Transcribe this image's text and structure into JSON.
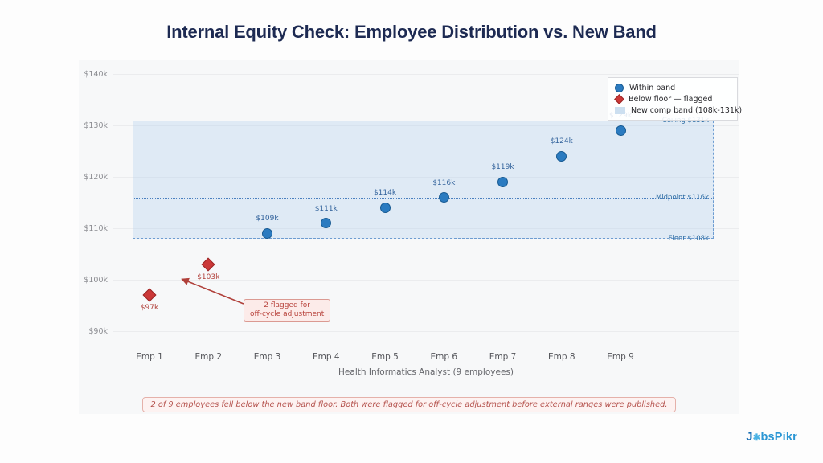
{
  "page": {
    "title": "Internal Equity Check: Employee Distribution vs. New Band",
    "logo": {
      "prefix": "J",
      "o_glyph": "✱",
      "suffix": "bsPikr"
    }
  },
  "legend": {
    "position": "upper right",
    "items": [
      {
        "label": "Within band",
        "swatch": "circle",
        "color": "#2b7bc0"
      },
      {
        "label": "Below floor — flagged",
        "swatch": "diamond",
        "color": "#cb3838"
      },
      {
        "label": "New comp band (108k-131k)",
        "swatch": "square",
        "color": "#ccdff0"
      }
    ]
  },
  "chart_data": {
    "type": "scatter",
    "title": "Internal Equity Check: Employee Distribution vs. New Band",
    "xlabel": "Health Informatics Analyst (9 employees)",
    "ylabel": "",
    "categories": [
      "Emp 1",
      "Emp 2",
      "Emp 3",
      "Emp 4",
      "Emp 5",
      "Emp 6",
      "Emp 7",
      "Emp 8",
      "Emp 9"
    ],
    "yticks": [
      {
        "value": 140,
        "label": "$140k"
      },
      {
        "value": 130,
        "label": "$130k"
      },
      {
        "value": 120,
        "label": "$120k"
      },
      {
        "value": 110,
        "label": "$110k"
      },
      {
        "value": 100,
        "label": "$100k"
      },
      {
        "value": 90,
        "label": "$90k"
      }
    ],
    "ylim_thousands": [
      86,
      143
    ],
    "grid": "horizontal",
    "series": [
      {
        "name": "Within band",
        "marker": "circle",
        "color": "#2b7bc0",
        "points": [
          {
            "x": "Emp 3",
            "y": 109,
            "label": "$109k"
          },
          {
            "x": "Emp 4",
            "y": 111,
            "label": "$111k"
          },
          {
            "x": "Emp 5",
            "y": 114,
            "label": "$114k"
          },
          {
            "x": "Emp 6",
            "y": 116,
            "label": "$116k"
          },
          {
            "x": "Emp 7",
            "y": 119,
            "label": "$119k"
          },
          {
            "x": "Emp 8",
            "y": 124,
            "label": "$124k"
          },
          {
            "x": "Emp 9",
            "y": 129,
            "label": "$129k"
          }
        ]
      },
      {
        "name": "Below floor — flagged",
        "marker": "diamond",
        "color": "#cb3838",
        "points": [
          {
            "x": "Emp 1",
            "y": 97,
            "label": "$97k"
          },
          {
            "x": "Emp 2",
            "y": 103,
            "label": "$103k"
          }
        ]
      }
    ],
    "band": {
      "floor_k": 108,
      "midpoint_k": 116,
      "ceiling_k": 131,
      "fill": "#dde9f6",
      "edge": "#6d9cd1",
      "labels": {
        "ceiling": "Ceiling  $131k",
        "midpoint": "Midpoint  $116k",
        "floor": "Floor  $108k"
      }
    },
    "annotation": {
      "line1": "2 flagged for",
      "line2": "off-cycle adjustment"
    },
    "caption": "2 of 9 employees fell below the new band floor. Both were flagged for off-cycle adjustment before external ranges were published."
  }
}
